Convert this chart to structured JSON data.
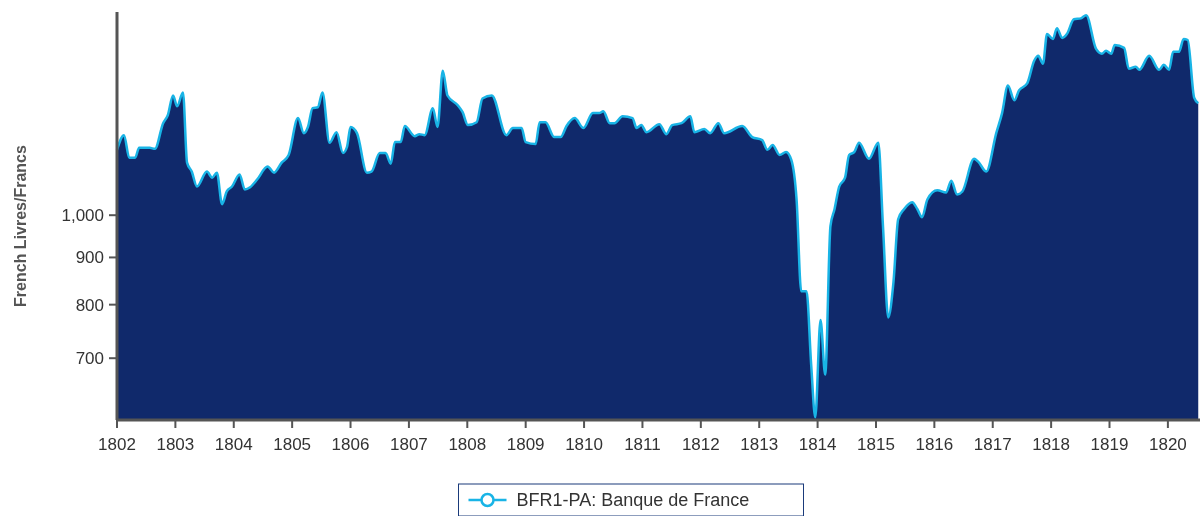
{
  "chart_data": {
    "type": "area",
    "ylabel": "French Livres/Francs",
    "log": "y",
    "ylim": [
      600,
      1660
    ],
    "yticks": [
      700,
      800,
      900,
      {
        "value": 1000,
        "label": "1,000"
      }
    ],
    "xlim": [
      1802,
      1820.55
    ],
    "xticks": [
      1802,
      1803,
      1804,
      1805,
      1806,
      1807,
      1808,
      1809,
      1810,
      1811,
      1812,
      1813,
      1814,
      1815,
      1816,
      1817,
      1818,
      1819,
      1820
    ],
    "legend": "bottom",
    "grid": false,
    "series": [
      {
        "name": "BFR1-PA: Banque de France",
        "color": "#19b4e6",
        "x": [
          1802.0,
          1802.12,
          1802.21,
          1802.31,
          1802.38,
          1802.56,
          1802.65,
          1802.79,
          1802.87,
          1802.96,
          1803.03,
          1803.13,
          1803.2,
          1803.28,
          1803.37,
          1803.54,
          1803.63,
          1803.71,
          1803.8,
          1803.88,
          1803.97,
          1804.1,
          1804.19,
          1804.28,
          1804.4,
          1804.58,
          1804.69,
          1804.82,
          1804.94,
          1805.1,
          1805.2,
          1805.27,
          1805.35,
          1805.44,
          1805.52,
          1805.64,
          1805.76,
          1805.87,
          1805.94,
          1806.0,
          1806.11,
          1806.28,
          1806.36,
          1806.5,
          1806.6,
          1806.69,
          1806.76,
          1806.86,
          1806.93,
          1807.1,
          1807.18,
          1807.27,
          1807.41,
          1807.49,
          1807.58,
          1807.66,
          1807.84,
          1807.92,
          1808.01,
          1808.16,
          1808.26,
          1808.42,
          1808.67,
          1808.78,
          1808.93,
          1809.0,
          1809.17,
          1809.24,
          1809.34,
          1809.49,
          1809.6,
          1809.7,
          1809.84,
          1809.99,
          1810.15,
          1810.26,
          1810.33,
          1810.44,
          1810.52,
          1810.66,
          1810.83,
          1810.9,
          1810.98,
          1811.07,
          1811.29,
          1811.41,
          1811.51,
          1811.67,
          1811.82,
          1811.89,
          1812.06,
          1812.16,
          1812.3,
          1812.4,
          1812.71,
          1812.88,
          1813.05,
          1813.14,
          1813.23,
          1813.35,
          1813.46,
          1813.55,
          1813.64,
          1813.72,
          1813.81,
          1813.89,
          1813.96,
          1814.05,
          1814.13,
          1814.22,
          1814.29,
          1814.37,
          1814.47,
          1814.54,
          1814.63,
          1814.71,
          1814.88,
          1815.04,
          1815.12,
          1815.21,
          1815.3,
          1815.38,
          1815.48,
          1815.62,
          1815.71,
          1815.79,
          1815.88,
          1816.05,
          1816.2,
          1816.29,
          1816.39,
          1816.48,
          1816.68,
          1816.75,
          1816.89,
          1817.06,
          1817.16,
          1817.26,
          1817.37,
          1817.45,
          1817.59,
          1817.71,
          1817.78,
          1817.86,
          1817.93,
          1818.03,
          1818.1,
          1818.19,
          1818.27,
          1818.39,
          1818.51,
          1818.6,
          1818.77,
          1818.87,
          1818.94,
          1819.03,
          1819.09,
          1819.25,
          1819.33,
          1819.45,
          1819.51,
          1819.68,
          1819.85,
          1819.93,
          1820.02,
          1820.09,
          1820.19,
          1820.27,
          1820.34,
          1820.45,
          1820.52
        ],
        "values": [
          1177,
          1221,
          1154,
          1154,
          1183,
          1183,
          1180,
          1258,
          1283,
          1348,
          1312,
          1358,
          1140,
          1115,
          1074,
          1115,
          1098,
          1112,
          1028,
          1061,
          1074,
          1107,
          1066,
          1072,
          1093,
          1129,
          1112,
          1140,
          1162,
          1274,
          1227,
          1246,
          1306,
          1309,
          1358,
          1198,
          1230,
          1168,
          1186,
          1246,
          1227,
          1112,
          1115,
          1168,
          1168,
          1137,
          1200,
          1200,
          1249,
          1218,
          1224,
          1221,
          1306,
          1246,
          1434,
          1348,
          1315,
          1293,
          1252,
          1261,
          1338,
          1348,
          1221,
          1243,
          1243,
          1200,
          1194,
          1261,
          1261,
          1215,
          1215,
          1249,
          1274,
          1243,
          1290,
          1290,
          1296,
          1258,
          1258,
          1280,
          1274,
          1243,
          1252,
          1230,
          1255,
          1224,
          1252,
          1258,
          1280,
          1230,
          1240,
          1227,
          1258,
          1227,
          1249,
          1215,
          1206,
          1177,
          1191,
          1162,
          1171,
          1148,
          1040,
          827,
          827,
          689,
          604,
          770,
          672,
          973,
          1015,
          1074,
          1098,
          1162,
          1171,
          1198,
          1151,
          1198,
          973,
          775,
          847,
          990,
          1015,
          1033,
          1015,
          995,
          1040,
          1064,
          1058,
          1090,
          1053,
          1061,
          1151,
          1143,
          1115,
          1227,
          1290,
          1382,
          1332,
          1365,
          1389,
          1470,
          1488,
          1459,
          1571,
          1552,
          1594,
          1556,
          1571,
          1630,
          1634,
          1647,
          1514,
          1496,
          1507,
          1496,
          1529,
          1518,
          1441,
          1448,
          1437,
          1488,
          1437,
          1455,
          1437,
          1503,
          1503,
          1552,
          1548,
          1341,
          1322
        ]
      }
    ]
  }
}
